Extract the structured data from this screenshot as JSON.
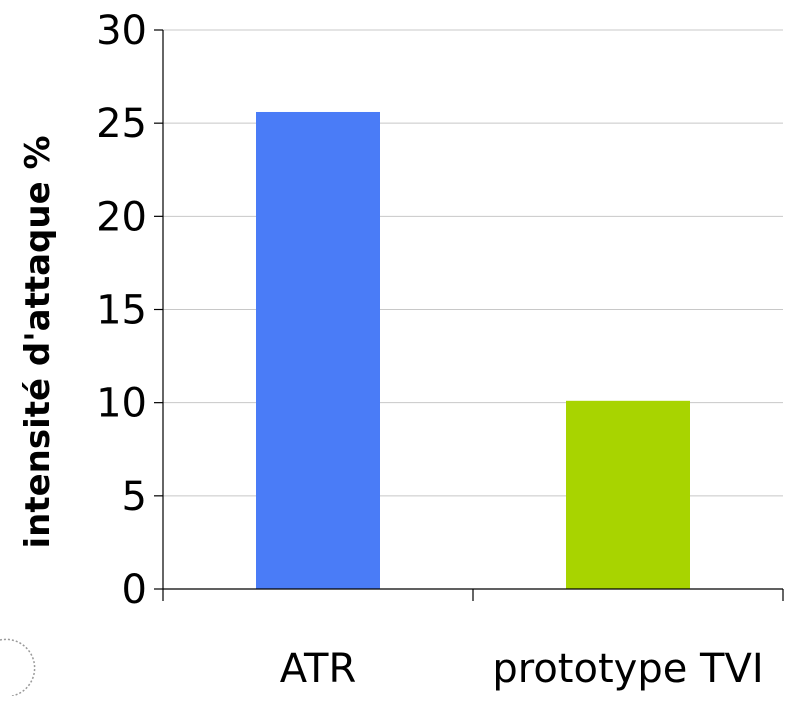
{
  "chart_data": {
    "type": "bar",
    "categories": [
      "ATR",
      "prototype TVI"
    ],
    "values": [
      25.6,
      10.1
    ],
    "colors": [
      "#4a7cf7",
      "#a8d400"
    ],
    "title": "",
    "xlabel": "",
    "ylabel": "intensité d'attaque %",
    "ylim": [
      0,
      30
    ],
    "yticks": [
      0,
      5,
      10,
      15,
      20,
      25,
      30
    ],
    "grid": true,
    "legend": "none"
  }
}
